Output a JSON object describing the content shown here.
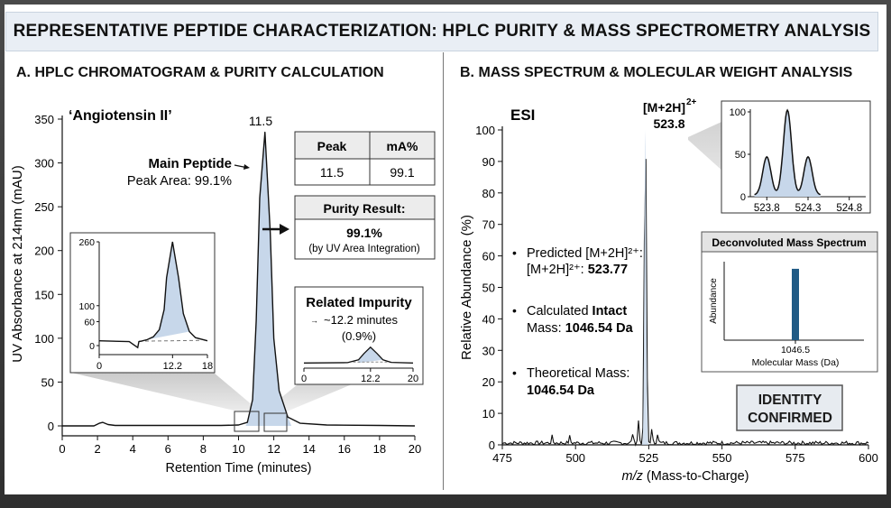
{
  "title": "REPRESENTATIVE PEPTIDE CHARACTERIZATION: HPLC PURITY & MASS SPECTROMETRY ANALYSIS",
  "panel_a": {
    "title": "A. HPLC CHROMATOGRAM & PURITY CALCULATION",
    "sample": "‘Angiotensin II’",
    "peak_label": "11.5",
    "main_peptide": "Main Peptide",
    "peak_area": "Peak Area: 99.1%",
    "table_headers": [
      "Peak",
      "mA%"
    ],
    "table_row": [
      "11.5",
      "99.1"
    ],
    "purity_title": "Purity Result:",
    "purity_value": "99.1%",
    "purity_method": "(by UV Area Integration)",
    "impurity_title": "Related Impurity",
    "impurity_time": "~12.2 minutes",
    "impurity_pct": "(0.9%)"
  },
  "panel_b": {
    "title": "B. MASS SPECTRUM & MOLECULAR WEIGHT ANALYSIS",
    "ionization": "ESI",
    "ion_label": "[M+2H]",
    "ion_charge": "2+",
    "ion_mz": "523.8",
    "bullets": [
      {
        "line1": "Predicted [M+2H]²⁺:",
        "line2a": "[M+2H]²⁺: ",
        "line2b": "523.77"
      },
      {
        "line1a": "Calculated ",
        "line1b": "Intact",
        "line2a": "Mass: ",
        "line2b": "1046.54 Da"
      },
      {
        "line1": "Theoretical Mass:",
        "line2b": "1046.54 Da"
      }
    ],
    "deconv_title": "Deconvoluted Mass Spectrum",
    "identity_line1": "IDENTITY",
    "identity_line2": "CONFIRMED"
  },
  "colors": {
    "accent_fill": "#c7d7ea",
    "deconv_bar": "#1f5a85",
    "line": "#111111",
    "banner_bg": "#e9eef5"
  },
  "chart_data": [
    {
      "type": "line",
      "name": "HPLC chromatogram",
      "xlabel": "Retention Time (minutes)",
      "ylabel": "UV Absorbance at 214nm (mAU)",
      "xlim": [
        0,
        20
      ],
      "ylim": [
        0,
        350
      ],
      "xticks": [
        0,
        2,
        4,
        6,
        8,
        10,
        12,
        14,
        16,
        18,
        20
      ],
      "yticks": [
        0,
        50,
        100,
        150,
        200,
        250,
        300,
        350
      ],
      "x": [
        0,
        1.8,
        2.1,
        2.3,
        2.6,
        3.0,
        6,
        9,
        10,
        10.5,
        10.8,
        11.0,
        11.2,
        11.5,
        11.8,
        12.0,
        12.3,
        12.8,
        13.5,
        15,
        18,
        20
      ],
      "y": [
        0,
        0,
        3,
        4,
        1.5,
        0.5,
        0.5,
        0.5,
        1,
        4,
        30,
        120,
        260,
        335,
        220,
        100,
        40,
        10,
        3,
        1,
        0.5,
        0
      ],
      "grid": false
    },
    {
      "type": "line",
      "name": "Main peak zoom inset",
      "xlim": [
        0,
        18
      ],
      "ylim": [
        -10,
        260
      ],
      "xticks": [
        0,
        12.2,
        18
      ],
      "yticks": [
        0,
        60,
        100,
        260
      ],
      "x": [
        0,
        5,
        6.4,
        6.6,
        7,
        8,
        9,
        10,
        10.8,
        11.2,
        12.2,
        13.2,
        14,
        15,
        16,
        18
      ],
      "y": [
        12,
        10,
        -5,
        10,
        11,
        15,
        22,
        40,
        90,
        170,
        260,
        170,
        80,
        35,
        20,
        12
      ]
    },
    {
      "type": "line",
      "name": "Related impurity inset",
      "xlim": [
        0,
        20
      ],
      "ylim": [
        0,
        10
      ],
      "xticks": [
        0,
        12.2,
        20
      ],
      "x": [
        0,
        8,
        10,
        11,
        12.2,
        13.4,
        14.5,
        16,
        20
      ],
      "y": [
        0.5,
        0.6,
        1.5,
        3.5,
        5.5,
        3.5,
        1.5,
        0.7,
        0.5
      ]
    },
    {
      "type": "line",
      "name": "ESI mass spectrum",
      "xlabel": "m/z (Mass-to-Charge)",
      "ylabel": "Relative Abundance (%)",
      "xlim": [
        475,
        600
      ],
      "ylim": [
        0,
        100
      ],
      "xticks": [
        475,
        500,
        525,
        550,
        575,
        600
      ],
      "yticks": [
        0,
        10,
        20,
        30,
        40,
        50,
        60,
        70,
        80,
        90,
        100
      ],
      "peaks": [
        {
          "x": 523.8,
          "y": 100
        },
        {
          "x": 524.3,
          "y": 16
        },
        {
          "x": 521.5,
          "y": 7
        },
        {
          "x": 526.0,
          "y": 4
        },
        {
          "x": 528.0,
          "y": 3
        },
        {
          "x": 519.5,
          "y": 3
        },
        {
          "x": 498.0,
          "y": 2
        },
        {
          "x": 492.0,
          "y": 2
        }
      ],
      "grid": false
    },
    {
      "type": "line",
      "name": "Isotope pattern inset",
      "xlim": [
        523.6,
        525.0
      ],
      "ylim": [
        0,
        100
      ],
      "xticks": [
        523.8,
        524.3,
        524.8
      ],
      "yticks": [
        0,
        50,
        100
      ],
      "peaks": [
        {
          "x": 523.8,
          "y": 45
        },
        {
          "x": 524.05,
          "y": 100
        },
        {
          "x": 524.3,
          "y": 45
        }
      ]
    },
    {
      "type": "bar",
      "name": "Deconvoluted mass spectrum",
      "title": "Deconvoluted Mass Spectrum",
      "xlabel": "Molecular Mass (Da)",
      "ylabel": "Abundance",
      "categories": [
        "1046.5"
      ],
      "values": [
        100
      ],
      "ylim": [
        0,
        110
      ]
    }
  ]
}
